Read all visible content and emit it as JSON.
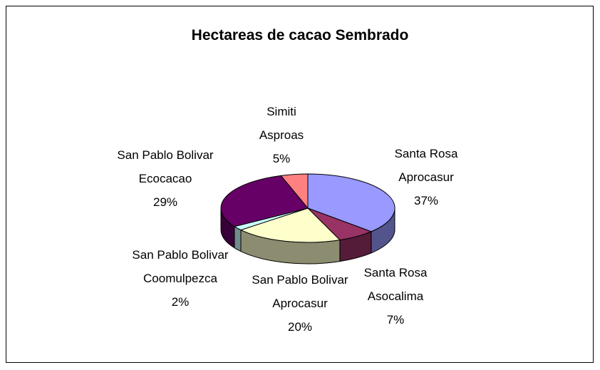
{
  "chart_data": {
    "type": "pie3d",
    "title": "Hectareas de cacao Sembrado",
    "categories": [
      "Santa Rosa\nAprocasur",
      "Santa Rosa\nAsocalima",
      "San Pablo Bolivar\nAprocasur",
      "San Pablo Bolivar\nCoomulpezca",
      "San Pablo Bolivar\nEcocacao",
      "Simiti\nAsproas"
    ],
    "values": [
      37,
      7,
      20,
      2,
      29,
      5
    ],
    "value_labels": [
      "37%",
      "7%",
      "20%",
      "2%",
      "29%",
      "5%"
    ],
    "colors": [
      "#9999ff",
      "#993366",
      "#ffffcc",
      "#ccffff",
      "#660066",
      "#ff8080"
    ]
  }
}
